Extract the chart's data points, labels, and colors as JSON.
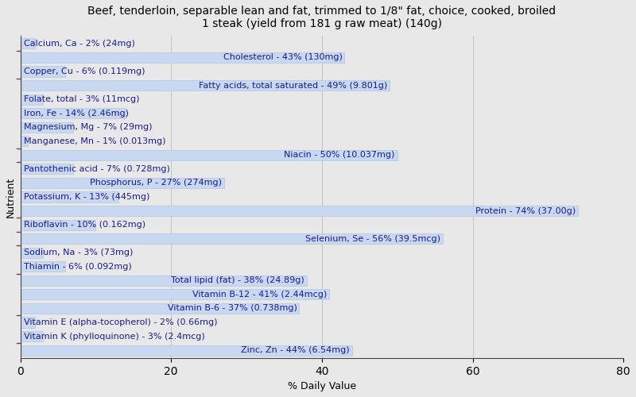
{
  "title_line1": "Beef, tenderloin, separable lean and fat, trimmed to 1/8\" fat, choice, cooked, broiled",
  "title_line2": "1 steak (yield from 181 g raw meat) (140g)",
  "xlabel": "% Daily Value",
  "ylabel": "Nutrient",
  "xlim": [
    0,
    80
  ],
  "xticks": [
    0,
    20,
    40,
    60,
    80
  ],
  "background_color": "#e8e8e8",
  "bar_color": "#c8d8f0",
  "bar_edge_color": "#a8c0e0",
  "nutrients": [
    {
      "label": "Calcium, Ca - 2% (24mg)",
      "value": 2
    },
    {
      "label": "Cholesterol - 43% (130mg)",
      "value": 43
    },
    {
      "label": "Copper, Cu - 6% (0.119mg)",
      "value": 6
    },
    {
      "label": "Fatty acids, total saturated - 49% (9.801g)",
      "value": 49
    },
    {
      "label": "Folate, total - 3% (11mcg)",
      "value": 3
    },
    {
      "label": "Iron, Fe - 14% (2.46mg)",
      "value": 14
    },
    {
      "label": "Magnesium, Mg - 7% (29mg)",
      "value": 7
    },
    {
      "label": "Manganese, Mn - 1% (0.013mg)",
      "value": 1
    },
    {
      "label": "Niacin - 50% (10.037mg)",
      "value": 50
    },
    {
      "label": "Pantothenic acid - 7% (0.728mg)",
      "value": 7
    },
    {
      "label": "Phosphorus, P - 27% (274mg)",
      "value": 27
    },
    {
      "label": "Potassium, K - 13% (445mg)",
      "value": 13
    },
    {
      "label": "Protein - 74% (37.00g)",
      "value": 74
    },
    {
      "label": "Riboflavin - 10% (0.162mg)",
      "value": 10
    },
    {
      "label": "Selenium, Se - 56% (39.5mcg)",
      "value": 56
    },
    {
      "label": "Sodium, Na - 3% (73mg)",
      "value": 3
    },
    {
      "label": "Thiamin - 6% (0.092mg)",
      "value": 6
    },
    {
      "label": "Total lipid (fat) - 38% (24.89g)",
      "value": 38
    },
    {
      "label": "Vitamin B-12 - 41% (2.44mcg)",
      "value": 41
    },
    {
      "label": "Vitamin B-6 - 37% (0.738mg)",
      "value": 37
    },
    {
      "label": "Vitamin E (alpha-tocopherol) - 2% (0.66mg)",
      "value": 2
    },
    {
      "label": "Vitamin K (phylloquinone) - 3% (2.4mcg)",
      "value": 3
    },
    {
      "label": "Zinc, Zn - 44% (6.54mg)",
      "value": 44
    }
  ],
  "separator_after_top_indices": [
    0,
    2,
    7,
    8,
    12,
    13,
    14,
    16,
    19,
    21
  ],
  "title_fontsize": 10,
  "axis_label_fontsize": 9,
  "bar_label_fontsize": 8,
  "label_color": "#1a1a8c",
  "label_threshold": 20
}
